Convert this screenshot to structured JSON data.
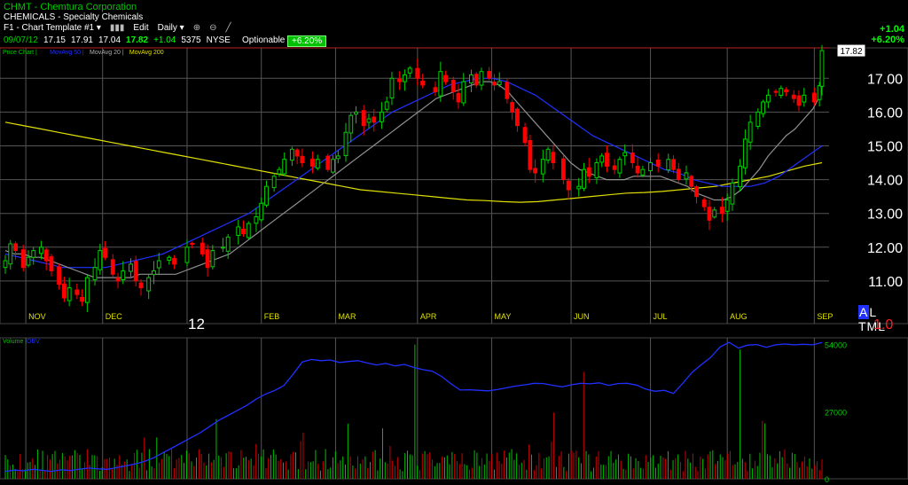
{
  "header": {
    "title": "CHMT - Chemtura Corporation",
    "sector": "CHEMICALS - Specialty Chemicals",
    "template": "F1 - Chart Template #1",
    "edit_label": "Edit",
    "period": "Daily",
    "quote": {
      "date": "09/07/12",
      "open": "17.15",
      "high": "17.91",
      "low": "17.04",
      "last": "17.82",
      "change": "+1.04",
      "volume": "5375",
      "exchange": "NYSE"
    },
    "optionable_label": "Optionable",
    "change_pct_badge": "+6.20%",
    "change_right": "+1.04",
    "change_pct_right": "+6.20%"
  },
  "price_panel": {
    "legend": [
      {
        "label": "Price Chart",
        "color": "#00c800"
      },
      {
        "label": "MovAvg 50",
        "color": "#2030ff"
      },
      {
        "label": "MovAvg 20",
        "color": "#b0b0b0"
      },
      {
        "label": "MovAvg 200",
        "color": "#e0e000"
      }
    ],
    "last_price_label": "17.82",
    "y_ticks": [
      "17.00",
      "16.00",
      "15.00",
      "14.00",
      "13.00",
      "12.00",
      "11.00"
    ],
    "months": [
      "NOV",
      "DEC",
      "FEB",
      "MAR",
      "APR",
      "MAY",
      "JUN",
      "JUL",
      "AUG",
      "SEP"
    ],
    "year_label": "12",
    "atml_label": "AL TML",
    "atml_a": "A",
    "atml_value": "1.0"
  },
  "volume_panel": {
    "legend": [
      {
        "label": "Volume",
        "color": "#00c800"
      },
      {
        "label": "OBV",
        "color": "#2030ff"
      }
    ],
    "y_ticks": [
      "54000",
      "27000",
      "0"
    ]
  },
  "chart_data": {
    "type": "candlestick",
    "ylim": [
      10.0,
      17.9
    ],
    "x": [
      "2011-10-24",
      "2011-10-26",
      "2011-10-28",
      "2011-10-31",
      "2011-11-02",
      "2011-11-04",
      "2011-11-07",
      "2011-11-09",
      "2011-11-11",
      "2011-11-14",
      "2011-11-16",
      "2011-11-18",
      "2011-11-21",
      "2011-11-23",
      "2011-11-25",
      "2011-11-28",
      "2011-11-30",
      "2011-12-02",
      "2011-12-05",
      "2011-12-07",
      "2011-12-09",
      "2011-12-12",
      "2011-12-14",
      "2011-12-16",
      "2011-12-19",
      "2011-12-21",
      "2011-12-23",
      "2011-12-27",
      "2011-12-29",
      "2012-01-03",
      "2012-01-05",
      "2012-01-09",
      "2012-01-11",
      "2012-01-13",
      "2012-01-17",
      "2012-01-19",
      "2012-01-23",
      "2012-01-25",
      "2012-01-27",
      "2012-01-30",
      "2012-02-01",
      "2012-02-03",
      "2012-02-06",
      "2012-02-08",
      "2012-02-10",
      "2012-02-13",
      "2012-02-15",
      "2012-02-17",
      "2012-02-21",
      "2012-02-23",
      "2012-02-27",
      "2012-02-29",
      "2012-03-02",
      "2012-03-05",
      "2012-03-07",
      "2012-03-09",
      "2012-03-12",
      "2012-03-14",
      "2012-03-16",
      "2012-03-19",
      "2012-03-21",
      "2012-03-23",
      "2012-03-26",
      "2012-03-28",
      "2012-03-30",
      "2012-04-02",
      "2012-04-04",
      "2012-04-09",
      "2012-04-11",
      "2012-04-13",
      "2012-04-16",
      "2012-04-18",
      "2012-04-20",
      "2012-04-23",
      "2012-04-25",
      "2012-04-27",
      "2012-04-30",
      "2012-05-02",
      "2012-05-04",
      "2012-05-07",
      "2012-05-09",
      "2012-05-11",
      "2012-05-14",
      "2012-05-16",
      "2012-05-18",
      "2012-05-21",
      "2012-05-23",
      "2012-05-25",
      "2012-05-29",
      "2012-05-31",
      "2012-06-04",
      "2012-06-06",
      "2012-06-08",
      "2012-06-11",
      "2012-06-13",
      "2012-06-15",
      "2012-06-18",
      "2012-06-20",
      "2012-06-22",
      "2012-06-25",
      "2012-06-27",
      "2012-06-29",
      "2012-07-02",
      "2012-07-05",
      "2012-07-09",
      "2012-07-11",
      "2012-07-13",
      "2012-07-16",
      "2012-07-18",
      "2012-07-20",
      "2012-07-23",
      "2012-07-25",
      "2012-07-27",
      "2012-07-30",
      "2012-08-01",
      "2012-08-03",
      "2012-08-06",
      "2012-08-08",
      "2012-08-10",
      "2012-08-13",
      "2012-08-15",
      "2012-08-17",
      "2012-08-20",
      "2012-08-22",
      "2012-08-24",
      "2012-08-27",
      "2012-08-29",
      "2012-08-31",
      "2012-09-04",
      "2012-09-06",
      "2012-09-07"
    ],
    "close": [
      11.6,
      12.1,
      11.9,
      11.4,
      11.7,
      11.9,
      12.0,
      11.6,
      11.3,
      10.9,
      10.5,
      10.8,
      10.6,
      10.4,
      11.1,
      11.4,
      11.9,
      11.7,
      11.2,
      11.0,
      11.3,
      11.5,
      11.0,
      10.8,
      11.1,
      11.3,
      11.6,
      11.7,
      11.5,
      12.0,
      12.1,
      11.8,
      11.4,
      11.9,
      12.0,
      12.3,
      12.6,
      12.4,
      12.7,
      12.9,
      13.3,
      13.8,
      14.1,
      14.3,
      14.6,
      14.9,
      14.7,
      14.5,
      14.4,
      14.6,
      14.3,
      14.6,
      14.7,
      15.4,
      15.9,
      16.0,
      15.6,
      15.8,
      15.7,
      16.0,
      16.3,
      17.0,
      16.9,
      17.1,
      17.3,
      17.0,
      16.8,
      16.6,
      17.2,
      16.9,
      16.6,
      16.3,
      16.9,
      17.1,
      16.8,
      17.2,
      17.0,
      16.8,
      16.9,
      16.4,
      16.0,
      15.6,
      15.1,
      14.3,
      14.2,
      14.6,
      14.9,
      14.5,
      14.0,
      13.7,
      13.8,
      14.3,
      14.1,
      14.5,
      14.7,
      14.4,
      14.3,
      14.6,
      14.8,
      14.5,
      14.2,
      14.3,
      14.5,
      14.4,
      14.6,
      14.3,
      14.0,
      14.2,
      13.8,
      13.5,
      13.2,
      12.8,
      13.1,
      13.0,
      13.4,
      13.9,
      14.4,
      15.2,
      15.7,
      16.0,
      16.3,
      16.5,
      16.6,
      16.7,
      16.6,
      16.4,
      16.2,
      16.5,
      16.3,
      16.78,
      17.82
    ],
    "ma20": [
      11.9,
      11.8,
      11.8,
      11.7,
      11.7,
      11.6,
      11.5,
      11.4,
      11.3,
      11.2,
      11.1,
      11.1,
      11.1,
      11.1,
      11.1,
      11.2,
      11.2,
      11.2,
      11.2,
      11.2,
      11.3,
      11.4,
      11.5,
      11.6,
      11.7,
      11.8,
      12.0,
      12.2,
      12.4,
      12.6,
      12.8,
      13.0,
      13.2,
      13.4,
      13.6,
      13.8,
      14.0,
      14.2,
      14.4,
      14.6,
      14.8,
      15.0,
      15.2,
      15.4,
      15.6,
      15.8,
      16.0,
      16.2,
      16.4,
      16.5,
      16.6,
      16.7,
      16.8,
      16.9,
      16.9,
      16.8,
      16.6,
      16.3,
      16.0,
      15.7,
      15.4,
      15.1,
      14.8,
      14.5,
      14.3,
      14.2,
      14.1,
      14.0,
      14.0,
      14.0,
      14.1,
      14.1,
      14.1,
      14.1,
      14.0,
      13.9,
      13.8,
      13.6,
      13.5,
      13.4,
      13.4,
      13.5,
      13.7,
      14.0,
      14.3,
      14.7,
      15.0,
      15.3,
      15.5,
      15.8,
      16.1,
      16.6
    ],
    "ma50": [
      11.8,
      11.7,
      11.6,
      11.5,
      11.4,
      11.4,
      11.4,
      11.4,
      11.5,
      11.6,
      11.7,
      11.8,
      12.0,
      12.2,
      12.4,
      12.6,
      12.8,
      13.0,
      13.3,
      13.6,
      13.9,
      14.2,
      14.5,
      14.8,
      15.1,
      15.4,
      15.7,
      16.0,
      16.2,
      16.4,
      16.6,
      16.8,
      16.9,
      17.0,
      17.0,
      16.9,
      16.7,
      16.5,
      16.2,
      15.9,
      15.6,
      15.3,
      15.1,
      14.9,
      14.7,
      14.5,
      14.3,
      14.2,
      14.0,
      13.9,
      13.8,
      13.8,
      13.8,
      13.9,
      14.1,
      14.4,
      14.7,
      15.0
    ],
    "ma200": [
      15.7,
      15.6,
      15.5,
      15.4,
      15.3,
      15.2,
      15.1,
      15.0,
      14.9,
      14.8,
      14.7,
      14.6,
      14.5,
      14.4,
      14.3,
      14.2,
      14.1,
      14.0,
      13.9,
      13.8,
      13.7,
      13.65,
      13.6,
      13.55,
      13.5,
      13.45,
      13.4,
      13.38,
      13.35,
      13.33,
      13.35,
      13.4,
      13.45,
      13.5,
      13.55,
      13.6,
      13.62,
      13.65,
      13.7,
      13.75,
      13.8,
      13.9,
      14.0,
      14.1,
      14.25,
      14.4,
      14.5
    ],
    "obv": [
      3000,
      3500,
      3200,
      3800,
      3400,
      3000,
      3600,
      3300,
      3900,
      4300,
      4000,
      3800,
      4500,
      5200,
      6000,
      7000,
      8500,
      10500,
      12500,
      14500,
      16500,
      18500,
      21000,
      23500,
      25500,
      27500,
      29500,
      32000,
      34000,
      35500,
      37500,
      42000,
      47000,
      48000,
      47500,
      47800,
      46800,
      47200,
      47500,
      46600,
      45800,
      46400,
      45400,
      46000,
      44800,
      43900,
      43300,
      41200,
      38300,
      35700,
      35800,
      35600,
      35400,
      35900,
      36600,
      37300,
      37800,
      38400,
      38300,
      37600,
      37000,
      37800,
      38400,
      38200,
      38600,
      37600,
      38300,
      38400,
      37700,
      36100,
      35200,
      35600,
      34300,
      38400,
      42800,
      45900,
      48800,
      53000,
      54900,
      52600,
      53800,
      54000,
      52900,
      53900,
      54200,
      53900,
      54100,
      53900,
      54800
    ]
  }
}
